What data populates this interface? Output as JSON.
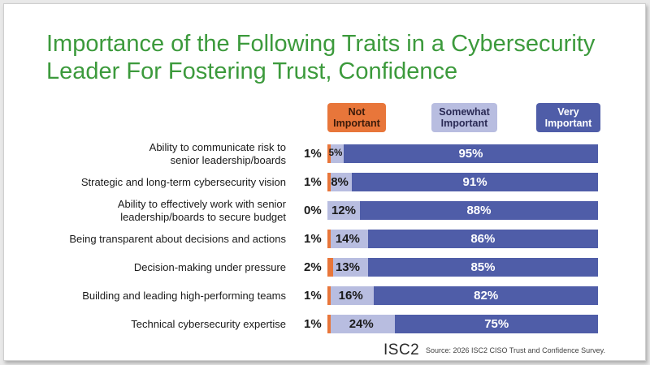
{
  "title": "Importance of the Following Traits in a Cybersecurity Leader For Fostering Trust, Confidence",
  "legend": [
    {
      "lines": [
        "Not",
        "Important"
      ],
      "color": "#e8763a",
      "text_color": "#3a1a0a"
    },
    {
      "lines": [
        "Somewhat",
        "Important"
      ],
      "color": "#b8bde0",
      "text_color": "#2a2a55"
    },
    {
      "lines": [
        "Very",
        "Important"
      ],
      "color": "#4f5da8",
      "text_color": "#ffffff"
    }
  ],
  "colors": {
    "not": "#e8763a",
    "somewhat": "#b8bde0",
    "very": "#4f5da8"
  },
  "chart_data": {
    "type": "bar",
    "orientation": "horizontal",
    "stacked": true,
    "title": "Importance of the Following Traits in a Cybersecurity Leader For Fostering Trust, Confidence",
    "categories": [
      [
        "Ability to communicate risk to",
        "senior leadership/boards"
      ],
      [
        "Strategic and long-term cybersecurity vision"
      ],
      [
        "Ability to effectively work with senior",
        "leadership/boards to secure budget"
      ],
      [
        "Being transparent about decisions and actions"
      ],
      [
        "Decision-making under pressure"
      ],
      [
        "Building and leading high-performing teams"
      ],
      [
        "Technical cybersecurity expertise"
      ]
    ],
    "series": [
      {
        "name": "Not Important",
        "values": [
          1,
          1,
          0,
          1,
          2,
          1,
          1
        ],
        "labels": [
          "1%",
          "1%",
          "0%",
          "1%",
          "2%",
          "1%",
          "1%"
        ]
      },
      {
        "name": "Somewhat Important",
        "values": [
          5,
          8,
          12,
          14,
          13,
          16,
          24
        ],
        "labels": [
          "5%",
          "8%",
          "12%",
          "14%",
          "13%",
          "16%",
          "24%"
        ]
      },
      {
        "name": "Very Important",
        "values": [
          95,
          91,
          88,
          86,
          85,
          82,
          75
        ],
        "labels": [
          "95%",
          "91%",
          "88%",
          "86%",
          "85%",
          "82%",
          "75%"
        ]
      }
    ],
    "legend_position": "top"
  },
  "footer": {
    "logo": "ISC2",
    "source": "Source: 2026 ISC2 CISO Trust and Confidence Survey."
  }
}
